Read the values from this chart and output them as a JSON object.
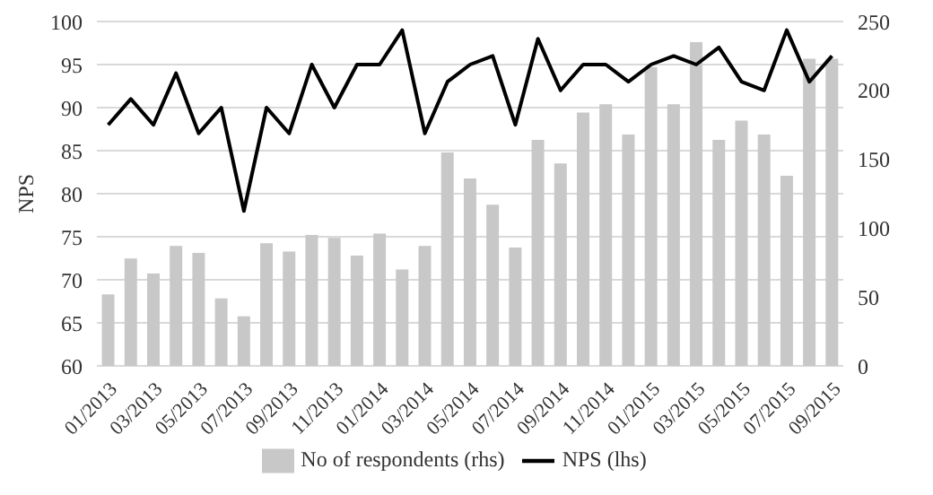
{
  "chart_data": {
    "type": "bar",
    "ylabel": "NPS",
    "categories": [
      "01/2013",
      null,
      "03/2013",
      null,
      "05/2013",
      null,
      "07/2013",
      null,
      "09/2013",
      null,
      "11/2013",
      null,
      "01/2014",
      null,
      "03/2014",
      null,
      "05/2014",
      null,
      "07/2014",
      null,
      "09/2014",
      null,
      "11/2014",
      null,
      "01/2015",
      null,
      "03/2015",
      null,
      "05/2015",
      null,
      "07/2015",
      null,
      "09/2015"
    ],
    "series": [
      {
        "name": "No of respondents (rhs)",
        "axis": "y2",
        "color": "#c8c8c8",
        "values": [
          52,
          78,
          67,
          87,
          82,
          49,
          36,
          89,
          83,
          95,
          93,
          80,
          96,
          70,
          87,
          155,
          136,
          117,
          86,
          164,
          147,
          184,
          190,
          168,
          217,
          190,
          235,
          164,
          178,
          168,
          138,
          223,
          223
        ]
      },
      {
        "name": "NPS (lhs)",
        "type": "line",
        "color": "#000000",
        "values": [
          88,
          91,
          88,
          94,
          87,
          90,
          78,
          90,
          87,
          95,
          90,
          95,
          95,
          99,
          87,
          93,
          95,
          96,
          88,
          98,
          92,
          95,
          95,
          93,
          95,
          96,
          95,
          97,
          93,
          92,
          99,
          93,
          96
        ]
      }
    ],
    "ylim": [
      60,
      100
    ],
    "yticks": [
      60,
      65,
      70,
      75,
      80,
      85,
      90,
      95,
      100
    ],
    "y2lim": [
      0,
      250
    ],
    "y2ticks": [
      0,
      50,
      100,
      150,
      200,
      250
    ],
    "grid": "y",
    "legend": "bottom",
    "marker": "none",
    "line_style": "solid"
  }
}
